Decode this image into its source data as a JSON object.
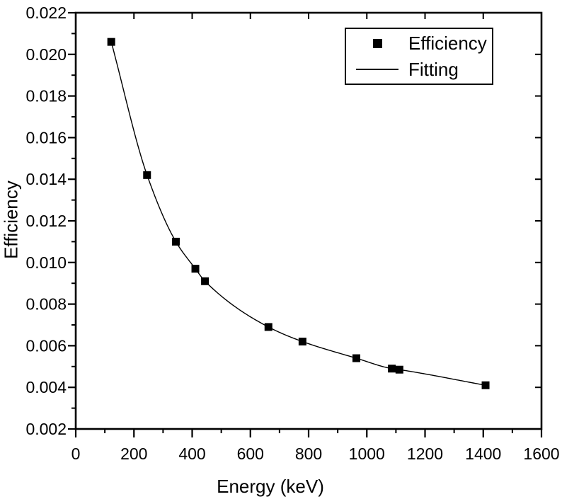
{
  "colors": {
    "foreground": "#000000",
    "background": "#ffffff"
  },
  "chart_data": {
    "type": "scatter",
    "title": "",
    "xlabel": "Energy (keV)",
    "ylabel": "Efficiency",
    "xlim": [
      0,
      1600
    ],
    "ylim": [
      0.002,
      0.022
    ],
    "x_tick_labels": [
      "0",
      "200",
      "400",
      "600",
      "800",
      "1000",
      "1200",
      "1400",
      "1600"
    ],
    "x_major_ticks": [
      0,
      200,
      400,
      600,
      800,
      1000,
      1200,
      1400,
      1600
    ],
    "x_minor_ticks": [
      100,
      300,
      500,
      700,
      900,
      1100,
      1300,
      1500
    ],
    "y_tick_labels": [
      "0.002",
      "0.004",
      "0.006",
      "0.008",
      "0.010",
      "0.012",
      "0.014",
      "0.016",
      "0.018",
      "0.020",
      "0.022"
    ],
    "y_major_ticks": [
      0.002,
      0.004,
      0.006,
      0.008,
      0.01,
      0.012,
      0.014,
      0.016,
      0.018,
      0.02,
      0.022
    ],
    "y_minor_ticks": [
      0.003,
      0.005,
      0.007,
      0.009,
      0.011,
      0.013,
      0.015,
      0.017,
      0.019,
      0.021
    ],
    "grid": false,
    "legend_position": "top-right-inside",
    "series": [
      {
        "name": "Efficiency",
        "type": "scatter",
        "marker": "filled-square",
        "color": "#000000",
        "points": [
          {
            "x": 122,
            "y": 0.0206
          },
          {
            "x": 245,
            "y": 0.0142
          },
          {
            "x": 344,
            "y": 0.011
          },
          {
            "x": 411,
            "y": 0.0097
          },
          {
            "x": 444,
            "y": 0.0091
          },
          {
            "x": 662,
            "y": 0.0069
          },
          {
            "x": 779,
            "y": 0.0062
          },
          {
            "x": 964,
            "y": 0.0054
          },
          {
            "x": 1086,
            "y": 0.0049
          },
          {
            "x": 1112,
            "y": 0.00485
          },
          {
            "x": 1408,
            "y": 0.0041
          }
        ]
      },
      {
        "name": "Fitting",
        "type": "line",
        "color": "#000000"
      }
    ]
  }
}
